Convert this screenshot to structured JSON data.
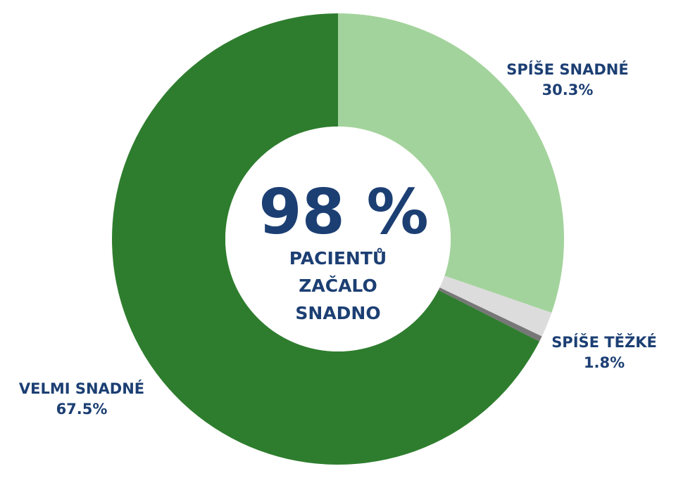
{
  "chart_data": {
    "type": "pie",
    "slices": [
      {
        "label": "SPÍŠE SNADNÉ",
        "value": 30.3,
        "display": "30.3%",
        "color": "#a3d39c"
      },
      {
        "label": "SPÍŠE TĚŽKÉ",
        "value": 1.8,
        "display": "1.8%",
        "color": "#dcdcdc"
      },
      {
        "label": "",
        "value": 0.4,
        "display": "",
        "color": "#777777"
      },
      {
        "label": "VELMI SNADNÉ",
        "value": 67.5,
        "display": "67.5%",
        "color": "#2e7d2e"
      }
    ],
    "center_text": {
      "big": "98 %",
      "lines": [
        "PACIENTŮ",
        "ZAČALO",
        "SNADNO"
      ]
    },
    "colors": {
      "label": "#1c3f73",
      "background": "#ffffff"
    }
  }
}
